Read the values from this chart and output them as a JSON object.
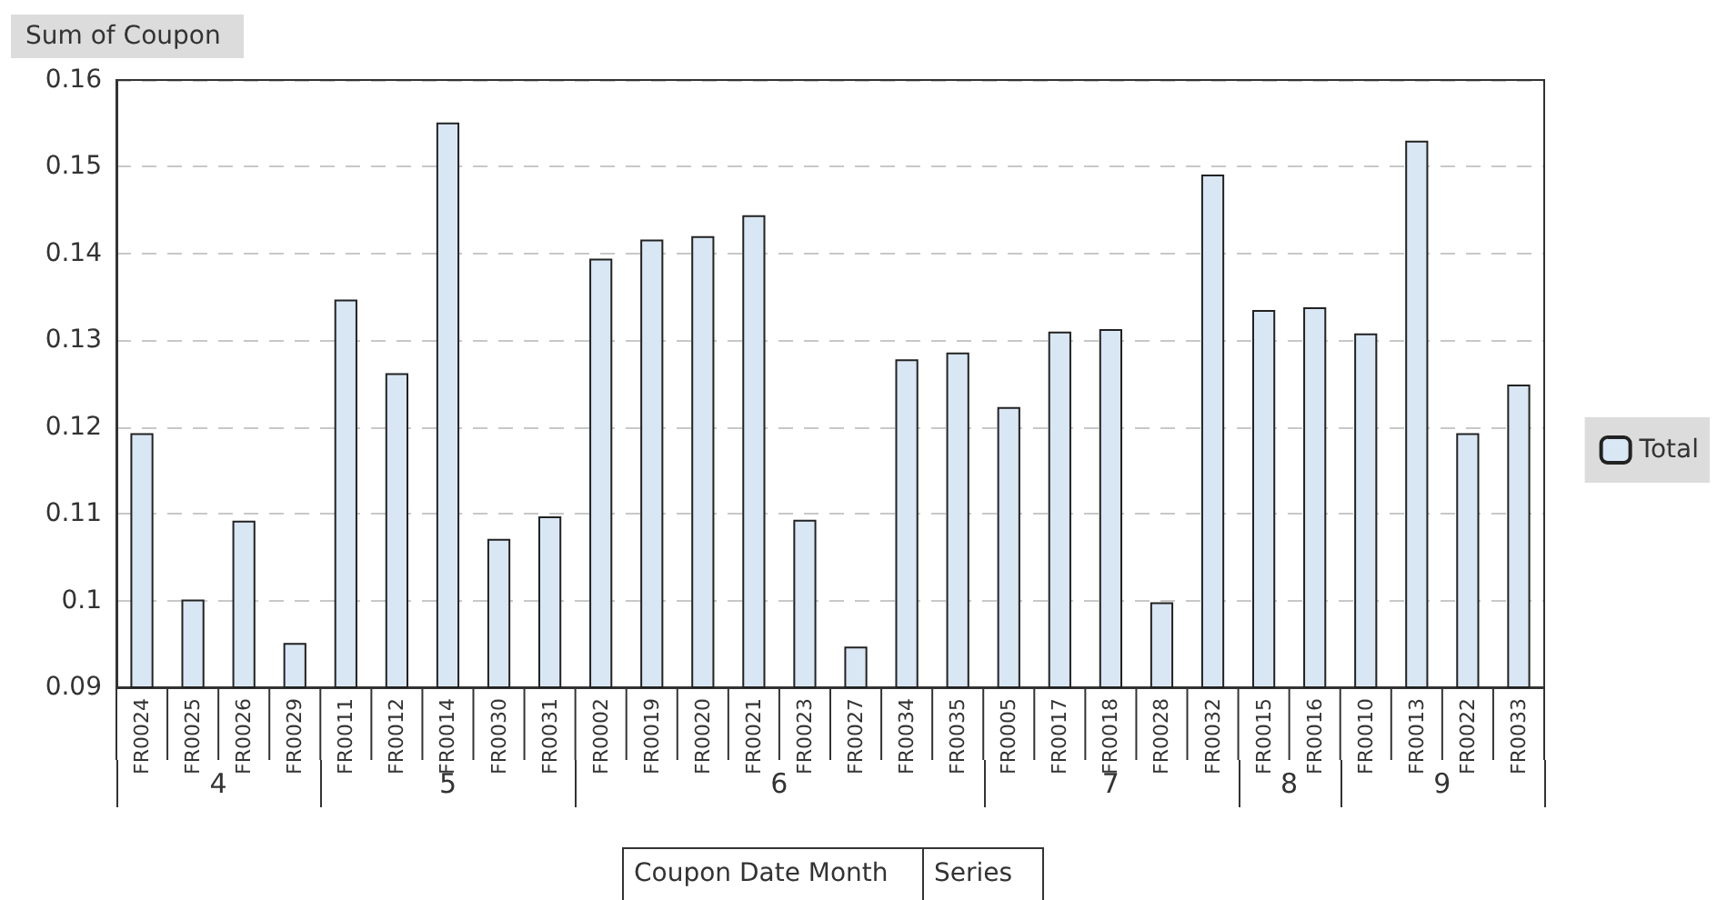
{
  "chart_data": {
    "type": "bar",
    "ylabel": "Sum of Coupon",
    "xlabel": "Coupon Date Month",
    "categories": [
      "FR0024",
      "FR0025",
      "FR0026",
      "FR0029",
      "FR0011",
      "FR0012",
      "FR0014",
      "FR0030",
      "FR0031",
      "FR0002",
      "FR0019",
      "FR0020",
      "FR0021",
      "FR0023",
      "FR0027",
      "FR0034",
      "FR0035",
      "FR0005",
      "FR0017",
      "FR0018",
      "FR0028",
      "FR0032",
      "FR0015",
      "FR0016",
      "FR0010",
      "FR0013",
      "FR0022",
      "FR0033"
    ],
    "series": [
      {
        "name": "Total",
        "color": "#d9e6f4",
        "values": [
          0.1193,
          0.1001,
          0.1092,
          0.0951,
          0.1347,
          0.1262,
          0.1551,
          0.1071,
          0.1097,
          0.1394,
          0.1416,
          0.142,
          0.1444,
          0.1093,
          0.0947,
          0.1278,
          0.1286,
          0.1223,
          0.131,
          0.1313,
          0.0998,
          0.1491,
          0.1335,
          0.1338,
          0.1308,
          0.153,
          0.1193,
          0.1249
        ]
      }
    ],
    "ylim": [
      0.09,
      0.16
    ],
    "yticks": [
      0.09,
      0.1,
      0.11,
      0.12,
      0.13,
      0.14,
      0.15,
      0.16
    ],
    "grid": "y",
    "legend": "right",
    "annotations": [
      "4",
      "5",
      "6",
      "7",
      "8",
      "9",
      "Series"
    ]
  }
}
